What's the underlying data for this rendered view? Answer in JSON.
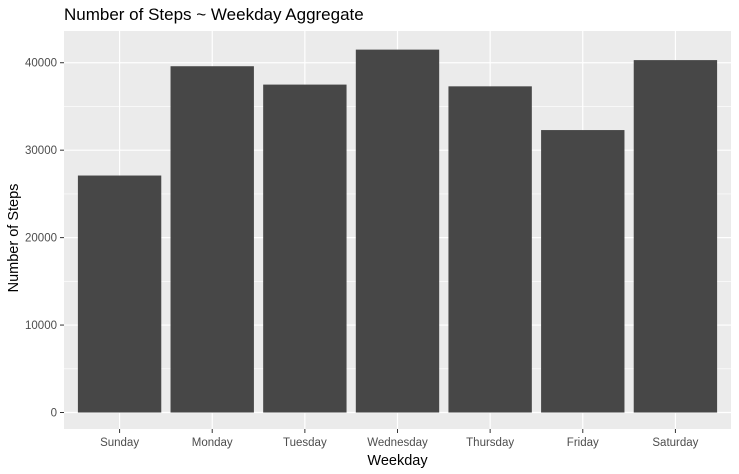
{
  "chart_data": {
    "type": "bar",
    "title": "Number of Steps ~ Weekday Aggregate",
    "xlabel": "Weekday",
    "ylabel": "Number of Steps",
    "categories": [
      "Sunday",
      "Monday",
      "Tuesday",
      "Wednesday",
      "Thursday",
      "Friday",
      "Saturday"
    ],
    "values": [
      27100,
      39600,
      37500,
      41500,
      37300,
      32300,
      40300
    ],
    "ylim": [
      0,
      43000
    ],
    "yticks": [
      0,
      10000,
      20000,
      30000,
      40000
    ],
    "ytick_labels": [
      "0",
      "10000",
      "20000",
      "30000",
      "40000"
    ],
    "grid": true,
    "bar_color": "#474747",
    "panel_color": "#ebebeb",
    "grid_color": "#ffffff"
  }
}
